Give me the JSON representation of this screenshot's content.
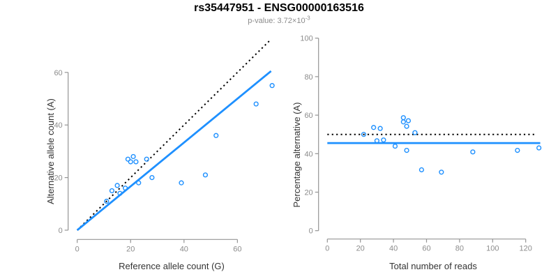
{
  "header": {
    "title": "rs35447951 - ENSG00000163516",
    "subtitle_prefix": "p-value: 3.72×10",
    "subtitle_exponent": "-3"
  },
  "colors": {
    "accent_blue": "#1E90FF",
    "dotted_black": "#000000",
    "axis_gray": "#949494",
    "tick_label_gray": "#8c8c8c",
    "axis_title_color": "#333333",
    "subtitle_gray": "#8c8c8c"
  },
  "chart_data": [
    {
      "type": "scatter",
      "name": "allele-counts-scatter",
      "xlabel": "Reference allele count (G)",
      "ylabel": "Alternative allele count (A)",
      "xticks": [
        0,
        20,
        40,
        60
      ],
      "yticks": [
        0,
        20,
        40,
        60
      ],
      "xlim": [
        0,
        73
      ],
      "ylim": [
        0,
        73
      ],
      "grid": false,
      "points": [
        [
          11,
          11
        ],
        [
          13,
          15
        ],
        [
          15,
          17
        ],
        [
          16,
          14
        ],
        [
          18,
          16
        ],
        [
          19,
          27
        ],
        [
          20,
          26
        ],
        [
          21,
          28
        ],
        [
          22,
          26
        ],
        [
          23,
          18
        ],
        [
          26,
          27
        ],
        [
          28,
          20
        ],
        [
          39,
          18
        ],
        [
          48,
          21
        ],
        [
          52,
          36
        ],
        [
          67,
          48
        ],
        [
          73,
          55
        ]
      ],
      "lines": [
        {
          "name": "identity-line",
          "style": "dotted",
          "color": "#000000",
          "x1": 0,
          "y1": 0,
          "x2": 72.6,
          "y2": 72.6
        },
        {
          "name": "regression-line",
          "style": "solid",
          "color": "#1E90FF",
          "x1": 0,
          "y1": 0,
          "x2": 72.6,
          "y2": 60.5
        }
      ]
    },
    {
      "type": "scatter",
      "name": "percentage-vs-reads-scatter",
      "xlabel": "Total number of reads",
      "ylabel": "Percentage alternative (A)",
      "xticks": [
        0,
        20,
        40,
        60,
        80,
        100,
        120
      ],
      "yticks": [
        0,
        20,
        40,
        60,
        80,
        100
      ],
      "xlim": [
        0,
        129
      ],
      "ylim": [
        0,
        100
      ],
      "grid": false,
      "points": [
        [
          22,
          50.0
        ],
        [
          28,
          53.6
        ],
        [
          30,
          46.7
        ],
        [
          32,
          53.1
        ],
        [
          34,
          47.1
        ],
        [
          41,
          43.9
        ],
        [
          46,
          58.7
        ],
        [
          46,
          56.5
        ],
        [
          48,
          54.2
        ],
        [
          48,
          41.7
        ],
        [
          49,
          57.1
        ],
        [
          53,
          50.9
        ],
        [
          57,
          31.6
        ],
        [
          69,
          30.4
        ],
        [
          88,
          40.9
        ],
        [
          115,
          41.7
        ],
        [
          128,
          43.0
        ]
      ],
      "lines": [
        {
          "name": "expected-50pct-line",
          "style": "dotted",
          "color": "#000000",
          "x1": 0,
          "y1": 50,
          "x2": 126.6,
          "y2": 50
        },
        {
          "name": "mean-percentage-line",
          "style": "solid",
          "color": "#1E90FF",
          "x1": 0,
          "y1": 45.5,
          "x2": 128.8,
          "y2": 45.5
        }
      ]
    }
  ]
}
